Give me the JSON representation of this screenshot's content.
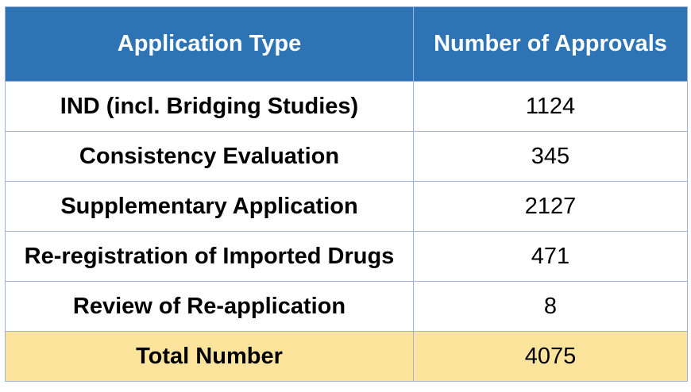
{
  "table": {
    "headers": [
      "Application Type",
      "Number of Approvals"
    ],
    "rows": [
      {
        "type": "IND (incl. Bridging Studies)",
        "count": "1124"
      },
      {
        "type": "Consistency Evaluation",
        "count": "345"
      },
      {
        "type": "Supplementary Application",
        "count": "2127"
      },
      {
        "type": "Re-registration of Imported Drugs",
        "count": "471"
      },
      {
        "type": "Review of Re-application",
        "count": "8"
      }
    ],
    "total": {
      "label": "Total Number",
      "count": "4075"
    }
  },
  "colors": {
    "header_bg": "#2e74b5",
    "header_text": "#ffffff",
    "total_bg": "#fde49c",
    "border": "#9fb3d6"
  }
}
